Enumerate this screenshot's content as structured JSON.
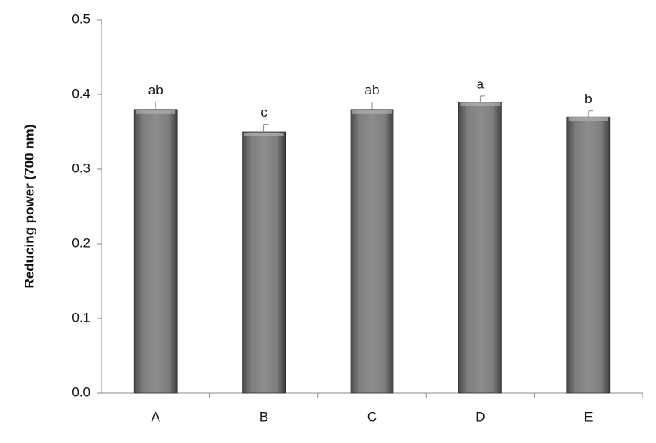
{
  "chart_data": {
    "type": "bar",
    "ylabel": "Reducing power (700 nm)",
    "categories": [
      "A",
      "B",
      "C",
      "D",
      "E"
    ],
    "values": [
      0.38,
      0.35,
      0.38,
      0.39,
      0.37
    ],
    "errors": [
      0.01,
      0.01,
      0.01,
      0.008,
      0.008
    ],
    "annotations": [
      "ab",
      "c",
      "ab",
      "a",
      "b"
    ],
    "color": "#7a7a7a",
    "ylim": [
      0,
      0.5
    ],
    "yticks": [
      {
        "value": 0,
        "label": "0.0"
      },
      0.1,
      0.2,
      0.3,
      0.4,
      0.5
    ],
    "grid": false
  }
}
